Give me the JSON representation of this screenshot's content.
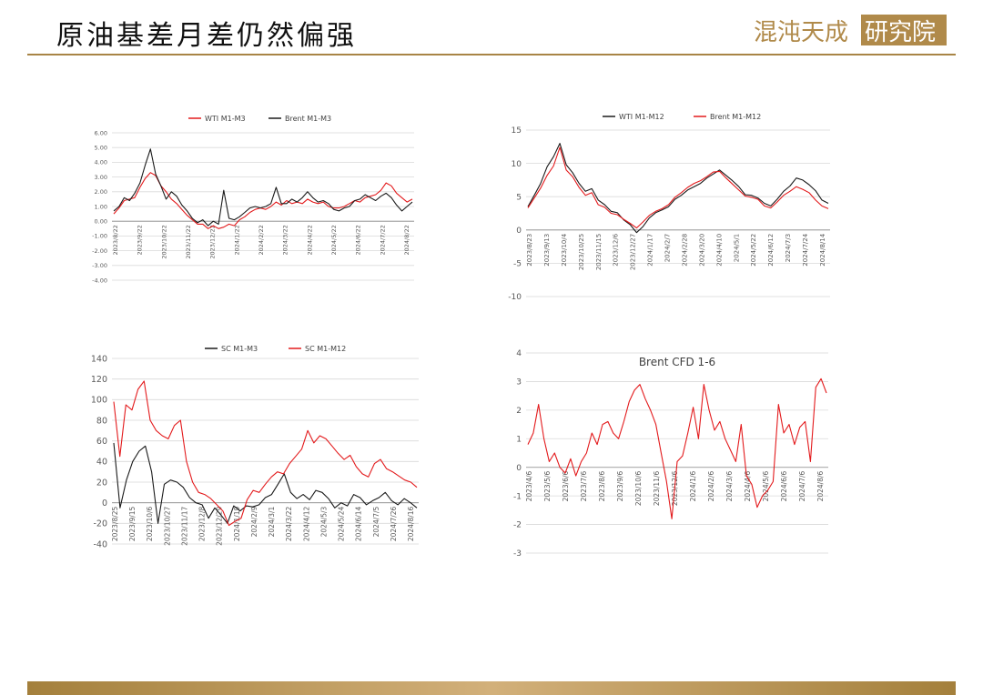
{
  "header": {
    "title": "原油基差月差仍然偏强",
    "logo_text_left": "混沌天成",
    "logo_text_right": "研究院",
    "accent": "#a88445"
  },
  "colors": {
    "red": "#e31a1c",
    "black": "#1a1a1a",
    "grid": "#d9d9d9",
    "tick": "#595959"
  },
  "chart_data": [
    {
      "id": "c1",
      "type": "line",
      "title": "",
      "legend_position": "top",
      "ylim": [
        -4,
        6
      ],
      "yticks": [
        "6.00",
        "5.00",
        "4.00",
        "3.00",
        "2.00",
        "1.00",
        "0.00",
        "-1.00",
        "-2.00",
        "-3.00",
        "-4.00"
      ],
      "xticks": [
        "2023/8/22",
        "2023/9/22",
        "2023/10/22",
        "2023/11/22",
        "2023/12/22",
        "2024/1/22",
        "2024/2/22",
        "2024/3/22",
        "2024/4/22",
        "2024/5/22",
        "2024/6/22",
        "2024/7/22",
        "2024/8/22"
      ],
      "series": [
        {
          "name": "WTI M1-M3",
          "color": "#e31a1c",
          "values": [
            0.5,
            0.9,
            1.4,
            1.5,
            1.6,
            2.3,
            2.9,
            3.3,
            3.1,
            2.4,
            2.0,
            1.5,
            1.2,
            0.8,
            0.4,
            0.1,
            -0.2,
            -0.2,
            -0.5,
            -0.3,
            -0.5,
            -0.4,
            -0.2,
            -0.3,
            0.1,
            0.3,
            0.6,
            0.8,
            0.9,
            0.8,
            1.0,
            1.3,
            1.1,
            1.4,
            1.2,
            1.3,
            1.2,
            1.5,
            1.3,
            1.2,
            1.3,
            1.0,
            0.9,
            0.9,
            1.0,
            1.2,
            1.4,
            1.3,
            1.6,
            1.7,
            1.8,
            2.1,
            2.6,
            2.4,
            1.9,
            1.6,
            1.3,
            1.5
          ]
        },
        {
          "name": "Brent M1-M3",
          "color": "#1a1a1a",
          "values": [
            0.7,
            1.0,
            1.6,
            1.4,
            1.9,
            2.6,
            3.8,
            4.9,
            3.2,
            2.4,
            1.5,
            2.0,
            1.7,
            1.1,
            0.7,
            0.2,
            -0.1,
            0.1,
            -0.3,
            0.0,
            -0.2,
            2.1,
            0.2,
            0.1,
            0.3,
            0.6,
            0.9,
            1.0,
            0.9,
            1.0,
            1.2,
            2.3,
            1.2,
            1.2,
            1.5,
            1.3,
            1.6,
            2.0,
            1.6,
            1.3,
            1.4,
            1.2,
            0.8,
            0.7,
            0.9,
            1.0,
            1.4,
            1.5,
            1.8,
            1.6,
            1.4,
            1.7,
            1.9,
            1.6,
            1.1,
            0.7,
            1.0,
            1.3
          ]
        }
      ]
    },
    {
      "id": "c2",
      "type": "line",
      "title": "",
      "legend_position": "top",
      "ylim": [
        -10,
        15
      ],
      "yticks": [
        "15",
        "10",
        "5",
        "0",
        "-5",
        "-10"
      ],
      "xticks": [
        "2023/8/23",
        "2023/9/13",
        "2023/10/4",
        "2023/10/25",
        "2023/11/15",
        "2023/12/6",
        "2023/12/27",
        "2024/1/17",
        "2024/2/7",
        "2024/2/28",
        "2024/3/20",
        "2024/4/10",
        "2024/5/1",
        "2024/5/22",
        "2024/6/12",
        "2024/7/3",
        "2024/7/24",
        "2024/8/14"
      ],
      "series": [
        {
          "name": "WTI M1-M12",
          "color": "#1a1a1a",
          "values": [
            3.5,
            5.2,
            7.0,
            9.5,
            11.0,
            13.0,
            9.8,
            8.6,
            7.0,
            5.8,
            6.2,
            4.5,
            3.8,
            2.8,
            2.6,
            1.5,
            0.8,
            -0.4,
            0.5,
            1.8,
            2.6,
            3.0,
            3.5,
            4.6,
            5.2,
            6.0,
            6.5,
            7.0,
            7.8,
            8.4,
            9.0,
            8.2,
            7.4,
            6.5,
            5.3,
            5.2,
            4.8,
            4.0,
            3.6,
            4.6,
            5.8,
            6.6,
            7.8,
            7.5,
            6.8,
            5.9,
            4.5,
            4.0
          ]
        },
        {
          "name": "Brent M1-M12",
          "color": "#e31a1c",
          "values": [
            3.3,
            4.8,
            6.3,
            8.2,
            9.6,
            12.4,
            9.0,
            8.0,
            6.4,
            5.2,
            5.6,
            3.8,
            3.4,
            2.5,
            2.3,
            1.6,
            1.0,
            0.3,
            1.2,
            2.2,
            2.8,
            3.2,
            3.8,
            4.9,
            5.6,
            6.4,
            7.0,
            7.4,
            8.0,
            8.7,
            8.8,
            7.8,
            6.9,
            6.0,
            5.1,
            4.9,
            4.6,
            3.6,
            3.3,
            4.2,
            5.2,
            5.8,
            6.5,
            6.1,
            5.6,
            4.5,
            3.6,
            3.2
          ]
        }
      ]
    },
    {
      "id": "c3",
      "type": "line",
      "title": "",
      "legend_position": "top",
      "ylim": [
        -40,
        140
      ],
      "yticks": [
        "140",
        "120",
        "100",
        "80",
        "60",
        "40",
        "20",
        "0",
        "-20",
        "-40"
      ],
      "xticks": [
        "2023/8/25",
        "2023/9/15",
        "2023/10/6",
        "2023/10/27",
        "2023/11/17",
        "2023/12/8",
        "2023/12/29",
        "2024/1/19",
        "2024/2/9",
        "2024/3/1",
        "2024/3/22",
        "2024/4/12",
        "2024/5/3",
        "2024/5/24",
        "2024/6/14",
        "2024/7/5",
        "2024/7/26",
        "2024/8/16"
      ],
      "series": [
        {
          "name": "SC M1-M3",
          "color": "#1a1a1a",
          "values": [
            58,
            -5,
            22,
            40,
            50,
            55,
            30,
            -20,
            18,
            22,
            20,
            15,
            5,
            0,
            -2,
            -15,
            -5,
            -12,
            -20,
            -3,
            -8,
            -3,
            -4,
            -2,
            5,
            8,
            18,
            28,
            10,
            4,
            8,
            3,
            12,
            10,
            4,
            -5,
            0,
            -3,
            8,
            5,
            -2,
            2,
            5,
            10,
            2,
            -2,
            4,
            0,
            -5
          ]
        },
        {
          "name": "SC M1-M12",
          "color": "#e31a1c",
          "values": [
            98,
            45,
            95,
            90,
            110,
            118,
            80,
            70,
            65,
            62,
            75,
            80,
            40,
            20,
            10,
            8,
            4,
            -2,
            -8,
            -22,
            -18,
            -15,
            3,
            12,
            10,
            18,
            25,
            30,
            28,
            38,
            45,
            52,
            70,
            58,
            65,
            62,
            55,
            48,
            42,
            46,
            35,
            28,
            25,
            38,
            42,
            33,
            30,
            26,
            22,
            20,
            15
          ]
        }
      ]
    },
    {
      "id": "c4",
      "type": "line",
      "title": "Brent CFD 1-6",
      "ylim": [
        -3,
        4
      ],
      "yticks": [
        "4",
        "3",
        "2",
        "1",
        "0",
        "-1",
        "-2",
        "-3"
      ],
      "xticks": [
        "2023/4/6",
        "2023/5/6",
        "2023/6/6",
        "2023/7/6",
        "2023/8/6",
        "2023/9/6",
        "2023/10/6",
        "2023/11/6",
        "2023/12/6",
        "2024/1/6",
        "2024/2/6",
        "2024/3/6",
        "2024/4/6",
        "2024/5/6",
        "2024/6/6",
        "2024/7/6",
        "2024/8/6"
      ],
      "series": [
        {
          "name": "Brent CFD 1-6",
          "color": "#e31a1c",
          "values": [
            0.8,
            1.2,
            2.2,
            1.0,
            0.2,
            0.5,
            0.0,
            -0.2,
            0.3,
            -0.3,
            0.2,
            0.5,
            1.2,
            0.8,
            1.5,
            1.6,
            1.2,
            1.0,
            1.6,
            2.3,
            2.7,
            2.9,
            2.4,
            2.0,
            1.5,
            0.5,
            -0.5,
            -1.8,
            0.2,
            0.4,
            1.2,
            2.1,
            1.0,
            2.9,
            2.0,
            1.3,
            1.6,
            1.0,
            0.6,
            0.2,
            1.5,
            -0.3,
            -0.6,
            -1.4,
            -1.0,
            -0.8,
            -0.5,
            2.2,
            1.2,
            1.5,
            0.8,
            1.4,
            1.6,
            0.2,
            2.8,
            3.1,
            2.6
          ]
        }
      ]
    }
  ]
}
